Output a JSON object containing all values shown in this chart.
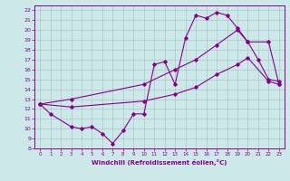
{
  "xlabel": "Windchill (Refroidissement éolien,°C)",
  "background_color": "#cce8e8",
  "grid_color": "#aac8c8",
  "line_color": "#880088",
  "xlim": [
    -0.5,
    23.5
  ],
  "ylim": [
    8,
    22.5
  ],
  "xticks": [
    0,
    1,
    2,
    3,
    4,
    5,
    6,
    7,
    8,
    9,
    10,
    11,
    12,
    13,
    14,
    15,
    16,
    17,
    18,
    19,
    20,
    21,
    22,
    23
  ],
  "yticks": [
    8,
    9,
    10,
    11,
    12,
    13,
    14,
    15,
    16,
    17,
    18,
    19,
    20,
    21,
    22
  ],
  "line1_x": [
    0,
    1,
    3,
    4,
    5,
    6,
    7,
    8,
    9,
    10,
    11,
    12,
    13,
    14,
    15,
    16,
    17,
    18,
    19,
    20,
    21,
    22,
    23
  ],
  "line1_y": [
    12.5,
    11.5,
    10.2,
    10.0,
    10.2,
    9.5,
    8.5,
    9.8,
    11.5,
    11.5,
    16.5,
    16.8,
    14.5,
    19.2,
    21.5,
    21.2,
    21.8,
    21.5,
    20.2,
    18.8,
    17.0,
    15.0,
    14.8
  ],
  "line2_x": [
    0,
    3,
    10,
    13,
    15,
    17,
    19,
    20,
    22,
    23
  ],
  "line2_y": [
    12.5,
    13.0,
    14.5,
    16.0,
    17.0,
    18.5,
    20.0,
    18.8,
    18.8,
    14.5
  ],
  "line3_x": [
    0,
    3,
    10,
    13,
    15,
    17,
    19,
    20,
    22,
    23
  ],
  "line3_y": [
    12.5,
    12.2,
    12.8,
    13.5,
    14.2,
    15.5,
    16.5,
    17.2,
    14.8,
    14.5
  ]
}
